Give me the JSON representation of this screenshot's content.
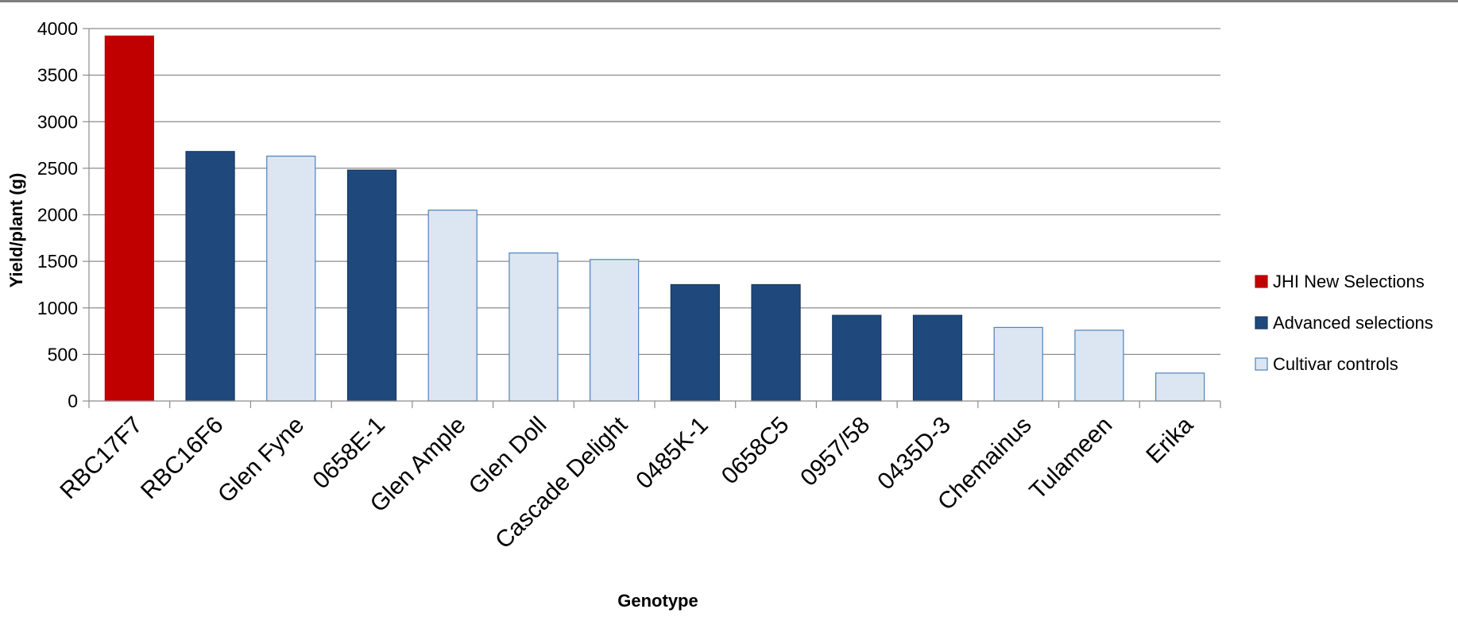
{
  "chart_data": {
    "type": "bar",
    "title": "",
    "xlabel": "Genotype",
    "ylabel": "Yield/plant (g)",
    "ylim": [
      0,
      4000
    ],
    "yticks": [
      0,
      500,
      1000,
      1500,
      2000,
      2500,
      3000,
      3500,
      4000
    ],
    "grid": true,
    "legend_position": "right",
    "categories": [
      "RBC17F7",
      "RBC16F6",
      "Glen Fyne",
      "0658E-1",
      "Glen Ample",
      "Glen Doll",
      "Cascade Delight",
      "0485K-1",
      "0658C5",
      "0957/58",
      "0435D-3",
      "Chemainus",
      "Tulameen",
      "Erika"
    ],
    "values": [
      3920,
      2680,
      2630,
      2480,
      2050,
      1590,
      1520,
      1250,
      1250,
      920,
      920,
      790,
      760,
      300
    ],
    "bar_group": [
      0,
      1,
      2,
      1,
      2,
      2,
      2,
      1,
      1,
      1,
      1,
      2,
      2,
      2
    ],
    "groups": [
      {
        "name": "JHI New Selections",
        "fill": "#c00000",
        "stroke": "#c00000"
      },
      {
        "name": "Advanced selections",
        "fill": "#1f497d",
        "stroke": "#17375e"
      },
      {
        "name": "Cultivar controls",
        "fill": "#dce6f2",
        "stroke": "#4f81bd"
      }
    ]
  }
}
